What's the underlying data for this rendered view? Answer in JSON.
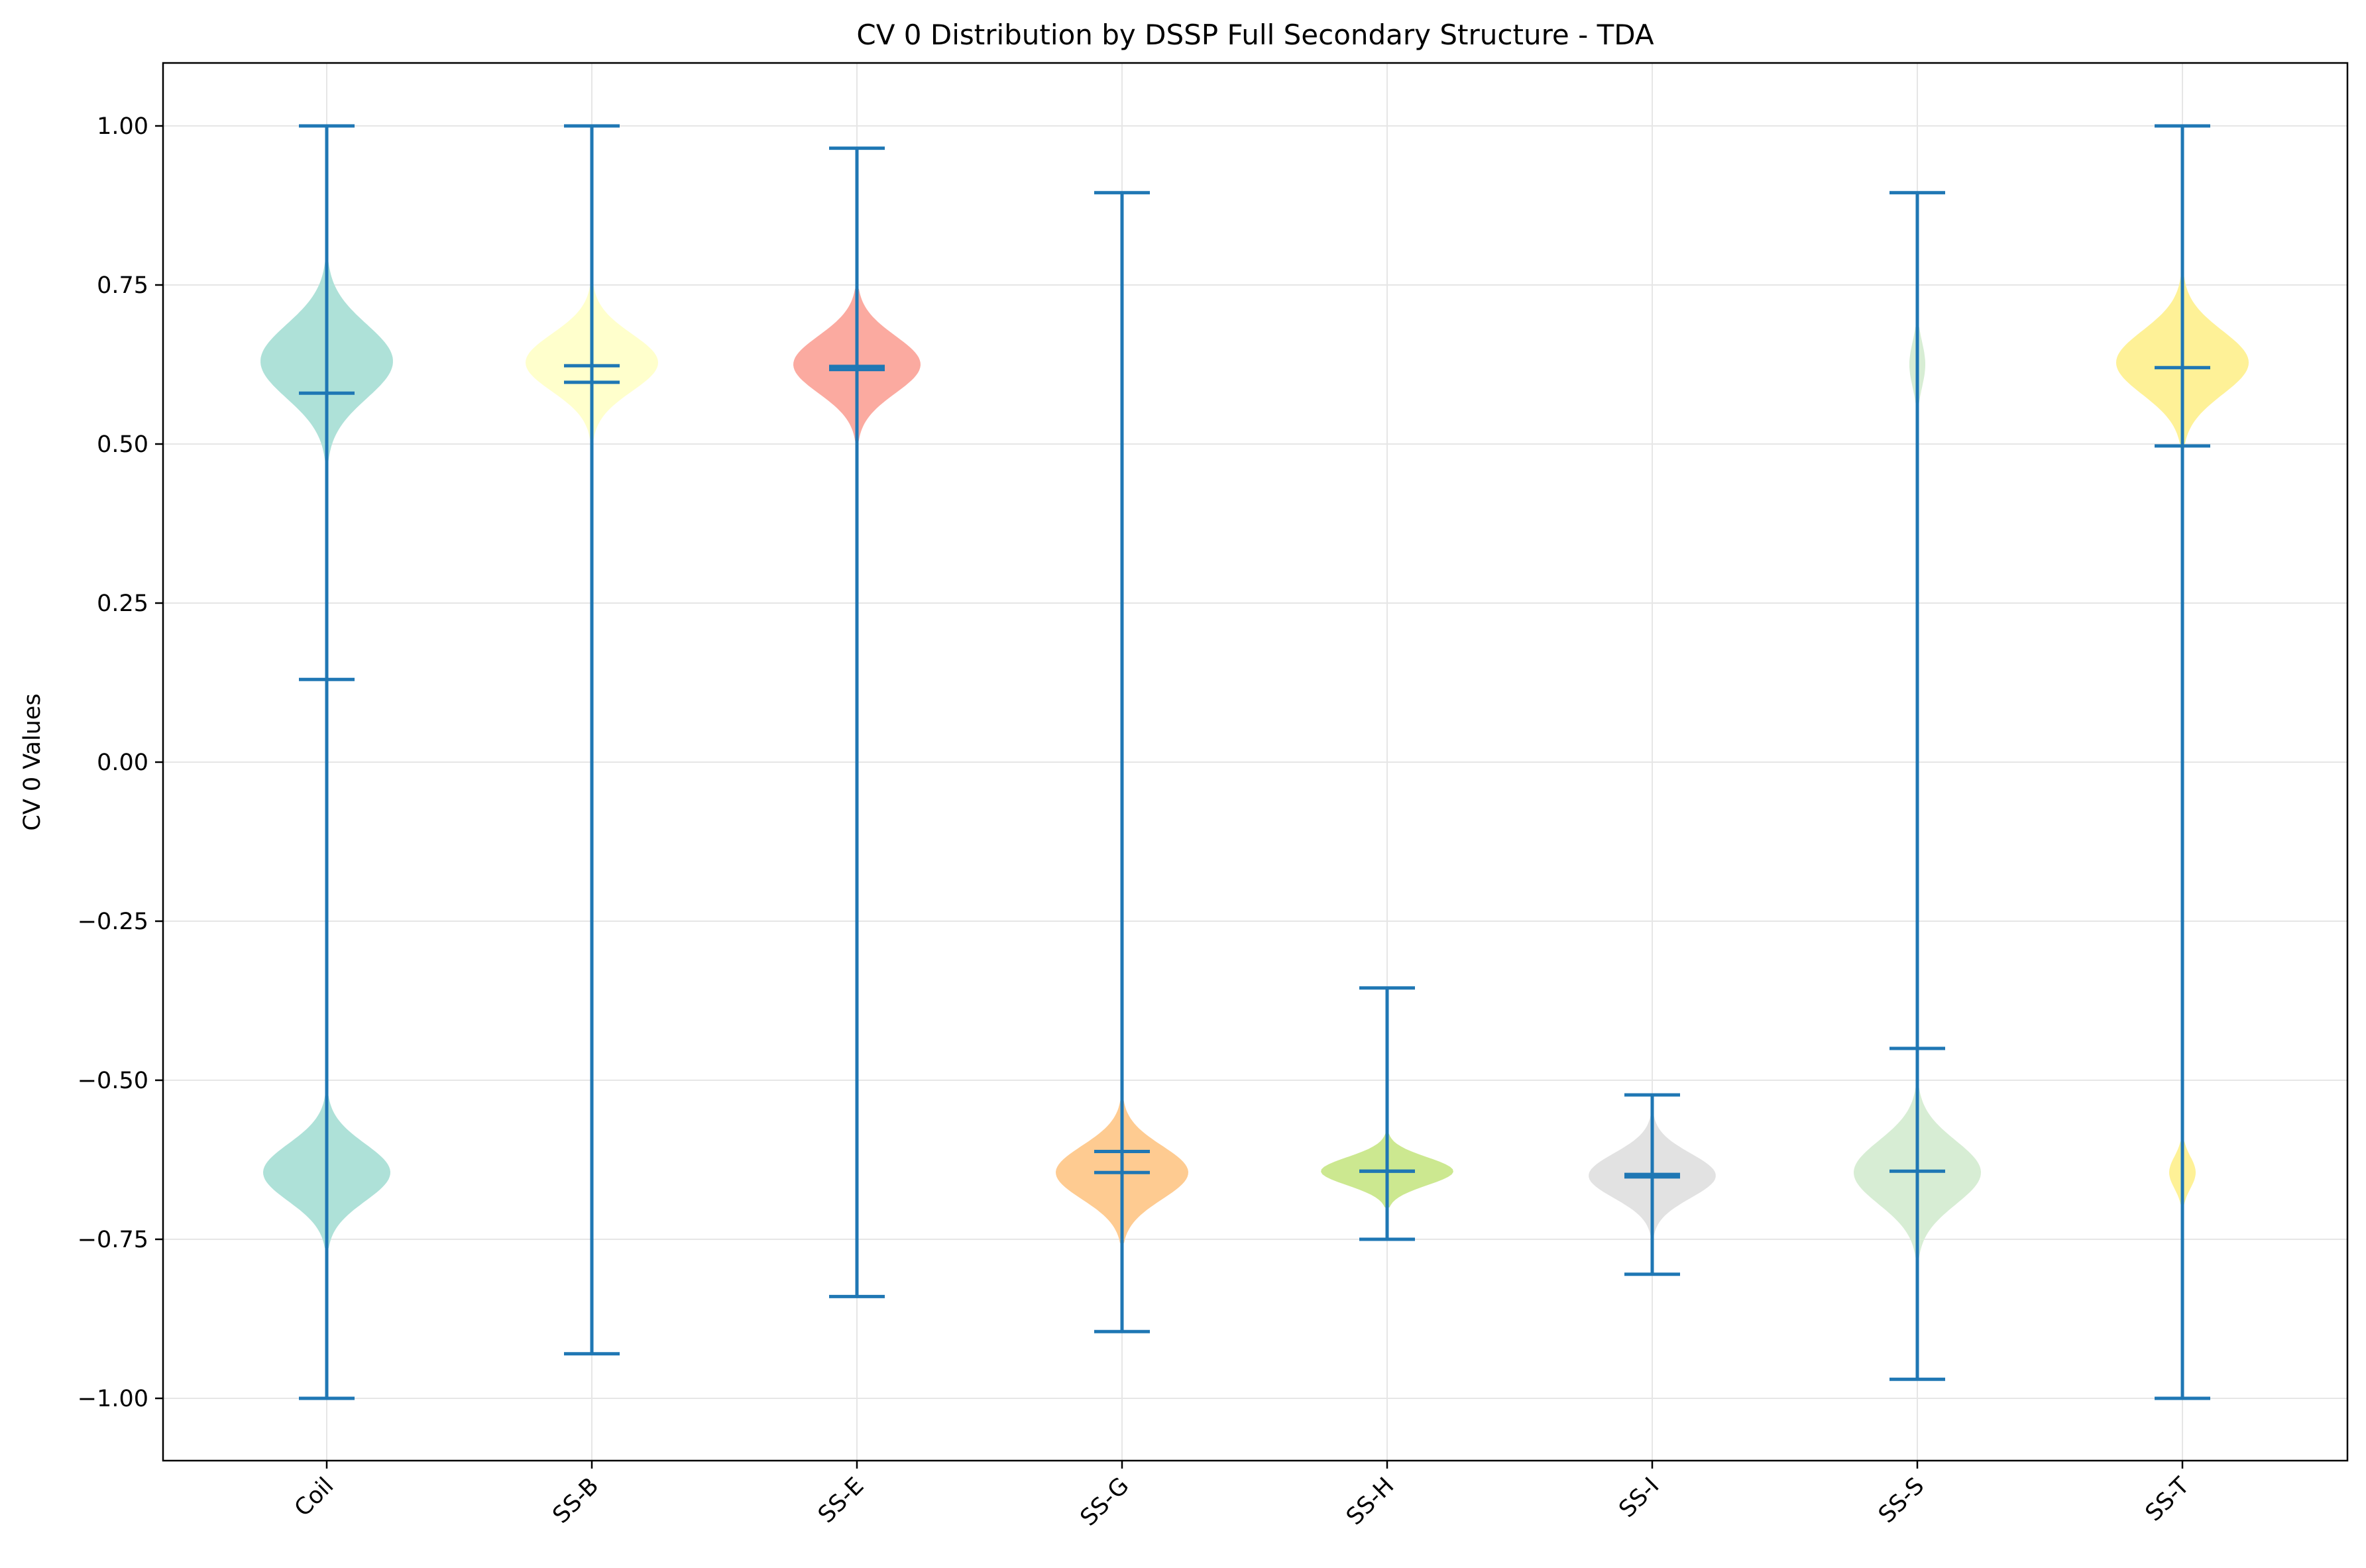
{
  "chart_data": {
    "type": "violin",
    "title": "CV 0 Distribution by DSSP Full Secondary Structure - TDA",
    "xlabel": "",
    "ylabel": "CV 0 Values",
    "ylim": [
      -1.1,
      1.1
    ],
    "yticks": [
      1.0,
      0.75,
      0.5,
      0.25,
      0.0,
      -0.25,
      -0.5,
      -0.75,
      -1.0
    ],
    "ytick_labels": [
      "1.00",
      "0.75",
      "0.50",
      "0.25",
      "0.00",
      "−0.25",
      "−0.50",
      "−0.75",
      "−1.00"
    ],
    "grid": true,
    "categories": [
      "Coil",
      "SS-B",
      "SS-E",
      "SS-G",
      "SS-H",
      "SS-I",
      "SS-S",
      "SS-T"
    ],
    "series": [
      {
        "category": "Coil",
        "color": "#aee1d8",
        "min": -1.0,
        "max": 1.0,
        "mean": 0.13,
        "median": 0.58,
        "density": [
          {
            "center": 0.63,
            "spread": 0.058,
            "width": 0.5
          },
          {
            "center": -0.645,
            "spread": 0.045,
            "width": 0.48
          }
        ]
      },
      {
        "category": "SS-B",
        "color": "#ffffcc",
        "min": -0.93,
        "max": 1.0,
        "mean": 0.597,
        "median": 0.623,
        "density": [
          {
            "center": 0.628,
            "spread": 0.045,
            "width": 0.5
          }
        ]
      },
      {
        "category": "SS-E",
        "color": "#fbaaa0",
        "min": -0.84,
        "max": 0.965,
        "mean": 0.617,
        "median": 0.622,
        "density": [
          {
            "center": 0.625,
            "spread": 0.045,
            "width": 0.48
          }
        ]
      },
      {
        "category": "SS-G",
        "color": "#fecb91",
        "min": -0.895,
        "max": 0.895,
        "mean": -0.612,
        "median": -0.645,
        "density": [
          {
            "center": -0.645,
            "spread": 0.042,
            "width": 0.5
          }
        ]
      },
      {
        "category": "SS-H",
        "color": "#cce890",
        "min": -0.75,
        "max": -0.355,
        "mean": -0.643,
        "median": -0.643,
        "density": [
          {
            "center": -0.643,
            "spread": 0.022,
            "width": 0.5
          }
        ]
      },
      {
        "category": "SS-I",
        "color": "#e2e2e2",
        "min": -0.805,
        "max": -0.523,
        "mean": -0.648,
        "median": -0.652,
        "density": [
          {
            "center": -0.65,
            "spread": 0.035,
            "width": 0.48
          }
        ]
      },
      {
        "category": "SS-S",
        "color": "#d7edd4",
        "min": -0.97,
        "max": 0.895,
        "mean": -0.45,
        "median": -0.643,
        "density": [
          {
            "center": 0.625,
            "spread": 0.035,
            "width": 0.06
          },
          {
            "center": -0.645,
            "spread": 0.05,
            "width": 0.48
          }
        ]
      },
      {
        "category": "SS-T",
        "color": "#fef197",
        "min": -1.0,
        "max": 1.0,
        "mean": 0.497,
        "median": 0.62,
        "density": [
          {
            "center": 0.628,
            "spread": 0.05,
            "width": 0.5
          },
          {
            "center": -0.645,
            "spread": 0.025,
            "width": 0.1
          }
        ]
      }
    ],
    "line_color": "#1f77b4",
    "grid_color": "#e6e6e6"
  }
}
